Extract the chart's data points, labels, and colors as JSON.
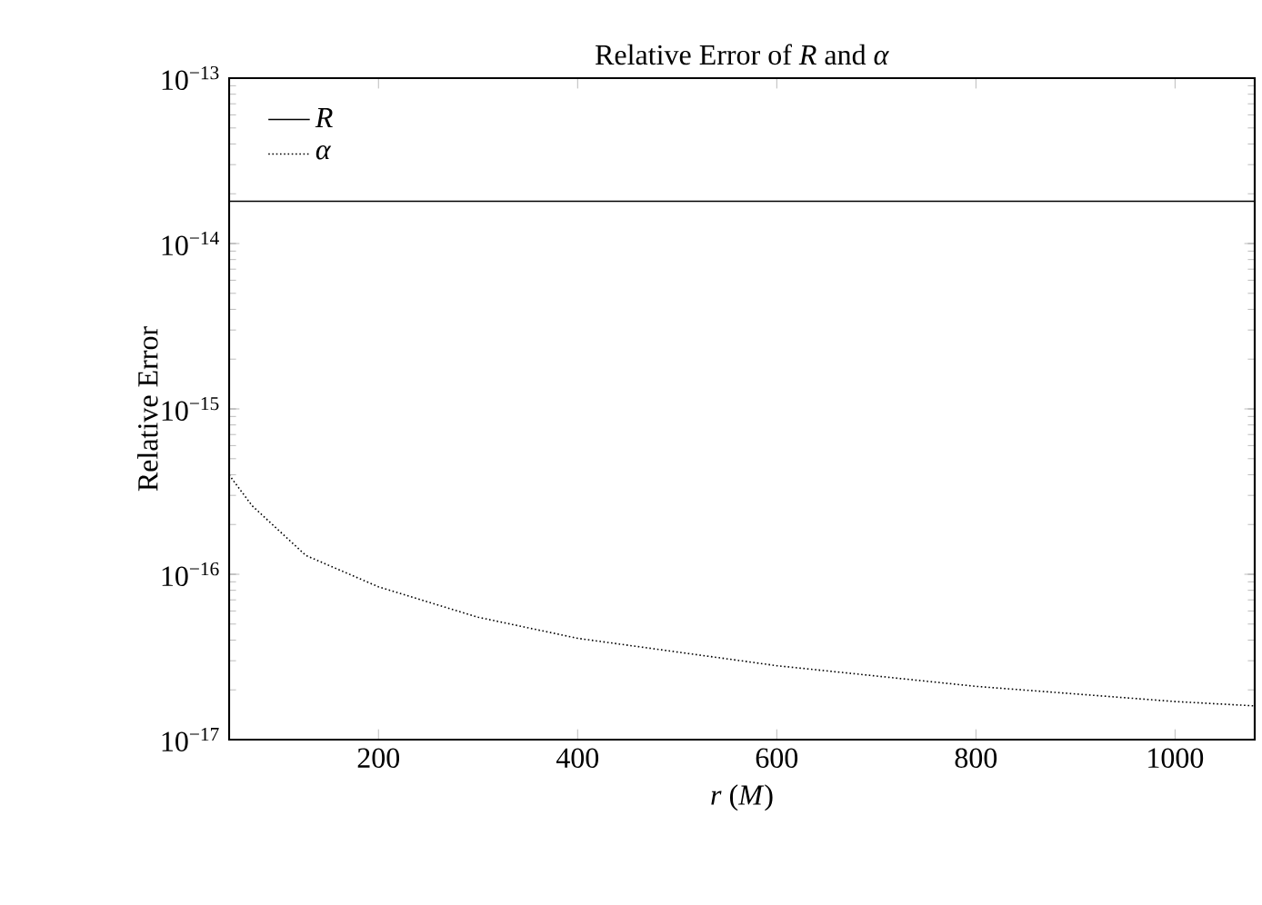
{
  "chart_data": {
    "type": "line",
    "title": "Relative Error of *R* and *α*",
    "xlabel": "*r* (*M*)",
    "ylabel": "Relative Error",
    "log": "y",
    "grid": false,
    "legend": "top left",
    "marker": "none",
    "xlim": [
      50,
      1080
    ],
    "xticks": [
      200,
      400,
      600,
      800,
      1000
    ],
    "ylim": [
      1e-17,
      1e-13
    ],
    "yticks": [
      {
        "value": 1e-17,
        "label": "10$^{−17}$"
      },
      {
        "value": 1e-16,
        "label": "10$^{−16}$"
      },
      {
        "value": 1e-15,
        "label": "10$^{−15}$"
      },
      {
        "value": 1e-14,
        "label": "10$^{−14}$"
      },
      {
        "value": 1e-13,
        "label": "10$^{−13}$"
      }
    ],
    "series": [
      {
        "name": "*R*",
        "color": "#000000",
        "line_style": "solid",
        "x": [
          50,
          1080
        ],
        "values": [
          1.8e-14,
          1.8e-14
        ]
      },
      {
        "name": "*α*",
        "color": "#000000",
        "line_style": "dotted",
        "x": [
          50,
          54,
          73,
          127,
          200,
          300,
          400,
          600,
          800,
          1000,
          1080
        ],
        "values": [
          4e-16,
          3.7e-16,
          2.6e-16,
          1.3e-16,
          8.4e-17,
          5.5e-17,
          4.1e-17,
          2.8e-17,
          2.1e-17,
          1.7e-17,
          1.6e-17
        ]
      }
    ]
  }
}
